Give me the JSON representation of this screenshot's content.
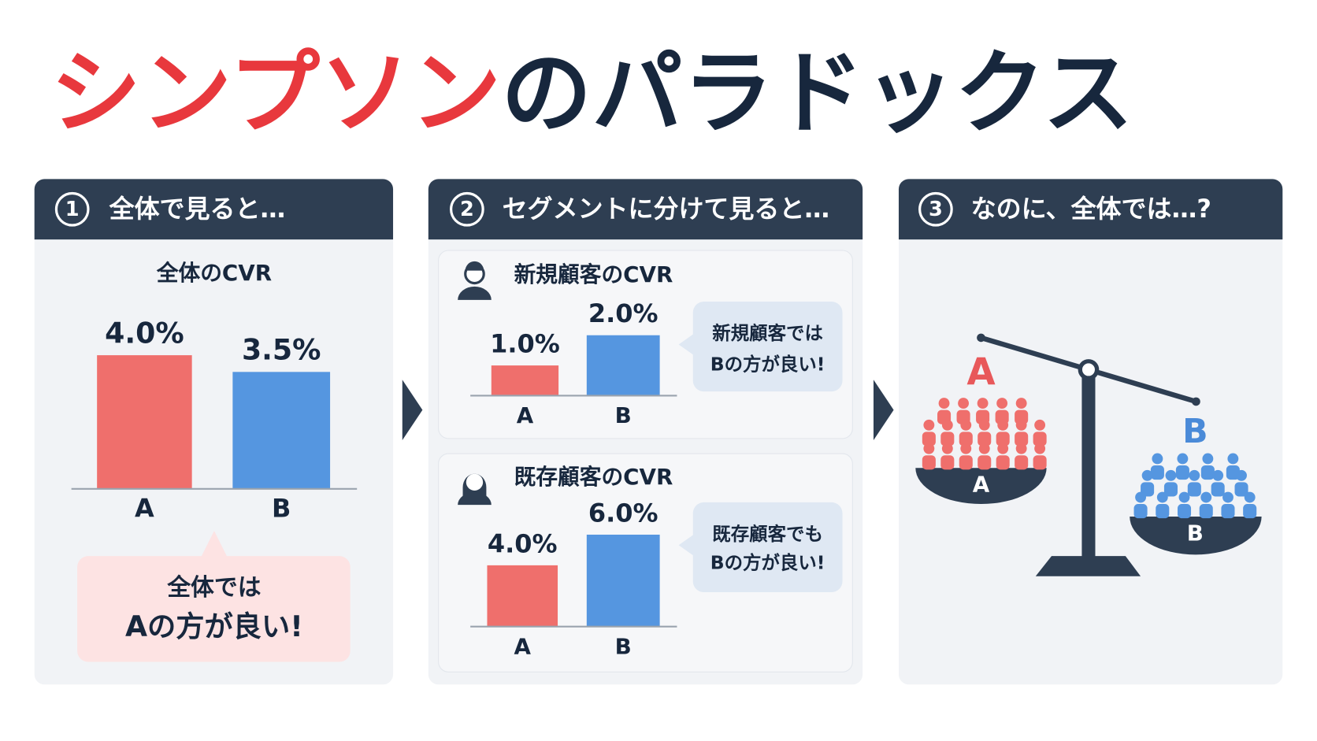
{
  "title": [
    "シンプソン",
    "のパラドックス"
  ],
  "panels": [
    {
      "number": "1",
      "header": "全体で見ると…",
      "bubble": [
        "全体では",
        "Aの方が良い!"
      ]
    },
    {
      "number": "2",
      "header": "セグメントに分けて見ると…",
      "bubbles": [
        [
          "新規顧客では",
          "Bの方が良い!"
        ],
        [
          "既存顧客でも",
          "Bの方が良い!"
        ]
      ]
    },
    {
      "number": "3",
      "header": "なのに、全体では…?",
      "scale_labels": [
        "A",
        "A",
        "B",
        "B"
      ]
    }
  ],
  "chart_data": [
    {
      "type": "bar",
      "title": "全体のCVR",
      "categories": [
        "A",
        "B"
      ],
      "values": [
        4.0,
        3.5
      ],
      "value_labels": [
        "4.0%",
        "3.5%"
      ],
      "colors": [
        "#ef6f6c",
        "#5596e0"
      ],
      "ylim": [
        0,
        5
      ]
    },
    {
      "type": "bar",
      "title": "新規顧客のCVR",
      "categories": [
        "A",
        "B"
      ],
      "values": [
        1.0,
        2.0
      ],
      "value_labels": [
        "1.0%",
        "2.0%"
      ],
      "colors": [
        "#ef6f6c",
        "#5596e0"
      ],
      "ylim": [
        0,
        2.5
      ]
    },
    {
      "type": "bar",
      "title": "既存顧客のCVR",
      "categories": [
        "A",
        "B"
      ],
      "values": [
        4.0,
        6.0
      ],
      "value_labels": [
        "4.0%",
        "6.0%"
      ],
      "colors": [
        "#ef6f6c",
        "#5596e0"
      ],
      "ylim": [
        0,
        8
      ]
    }
  ]
}
